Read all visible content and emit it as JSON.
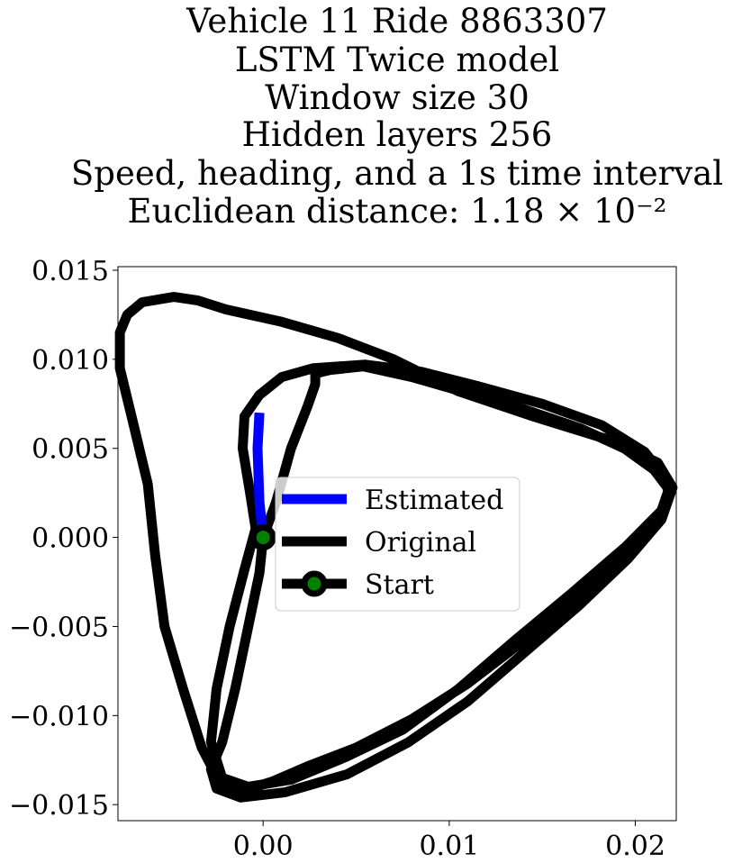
{
  "chart_data": {
    "type": "line",
    "title_lines": [
      "Vehicle 11 Ride 8863307",
      "LSTM Twice model",
      "Window size 30",
      "Hidden layers 256",
      "Speed, heading, and a 1s time interval",
      "Euclidean distance: 1.18 × 10⁻²"
    ],
    "xlabel": "",
    "ylabel": "",
    "xlim": [
      -0.0078,
      0.0222
    ],
    "ylim": [
      -0.0159,
      0.0152
    ],
    "xticks": [
      0.0,
      0.01,
      0.02
    ],
    "xtick_labels": [
      "0.00",
      "0.01",
      "0.02"
    ],
    "yticks": [
      -0.015,
      -0.01,
      -0.005,
      0.0,
      0.005,
      0.01,
      0.015
    ],
    "ytick_labels": [
      "−0.015",
      "−0.010",
      "−0.005",
      "0.000",
      "0.005",
      "0.010",
      "0.015"
    ],
    "grid": false,
    "legend_position": "center",
    "series": [
      {
        "name": "Estimated",
        "color": "#0000ff",
        "points": [
          [
            0.0,
            0.0
          ],
          [
            -0.0002,
            0.002
          ],
          [
            -0.0003,
            0.005
          ],
          [
            -0.0002,
            0.007
          ]
        ]
      },
      {
        "name": "Original",
        "color": "#000000",
        "points": [
          [
            0.0,
            0.0
          ],
          [
            0.0007,
            0.002
          ],
          [
            0.0015,
            0.005
          ],
          [
            0.0024,
            0.0074
          ],
          [
            0.0028,
            0.0086
          ],
          [
            0.0028,
            0.0092
          ],
          [
            0.0036,
            0.0094
          ],
          [
            0.0054,
            0.0096
          ],
          [
            0.008,
            0.009
          ],
          [
            0.011,
            0.0081
          ],
          [
            0.014,
            0.0072
          ],
          [
            0.0171,
            0.0061
          ],
          [
            0.0194,
            0.005
          ],
          [
            0.021,
            0.0038
          ],
          [
            0.0218,
            0.0027
          ],
          [
            0.0214,
            0.0015
          ],
          [
            0.0195,
            -0.0005
          ],
          [
            0.0165,
            -0.0032
          ],
          [
            0.0135,
            -0.0058
          ],
          [
            0.0105,
            -0.0085
          ],
          [
            0.0075,
            -0.0108
          ],
          [
            0.0045,
            -0.0123
          ],
          [
            0.0015,
            -0.0136
          ],
          [
            -0.0008,
            -0.014
          ],
          [
            -0.0022,
            -0.0135
          ],
          [
            -0.0028,
            -0.0115
          ],
          [
            -0.0025,
            -0.0085
          ],
          [
            -0.0018,
            -0.005
          ],
          [
            -0.001,
            -0.0018
          ],
          [
            -0.0004,
            0.0005
          ],
          [
            -0.0007,
            0.0025
          ],
          [
            -0.0011,
            0.005
          ],
          [
            -0.001,
            0.0068
          ],
          [
            -0.0002,
            0.008
          ],
          [
            0.001,
            0.009
          ],
          [
            0.0027,
            0.0095
          ],
          [
            0.0055,
            0.0097
          ],
          [
            0.0085,
            0.0093
          ],
          [
            0.0115,
            0.0085
          ],
          [
            0.015,
            0.0075
          ],
          [
            0.0182,
            0.0063
          ],
          [
            0.0205,
            0.0048
          ],
          [
            0.0215,
            0.0035
          ],
          [
            0.0218,
            0.0025
          ],
          [
            0.0213,
            0.0012
          ],
          [
            0.0195,
            -0.0008
          ],
          [
            0.0168,
            -0.0034
          ],
          [
            0.014,
            -0.0058
          ],
          [
            0.011,
            -0.0082
          ],
          [
            0.008,
            -0.0102
          ],
          [
            0.005,
            -0.0118
          ],
          [
            0.0025,
            -0.0128
          ],
          [
            0.0005,
            -0.0137
          ],
          [
            -0.001,
            -0.0142
          ],
          [
            -0.0024,
            -0.0136
          ],
          [
            -0.0033,
            -0.0118
          ],
          [
            -0.0043,
            -0.0085
          ],
          [
            -0.0053,
            -0.005
          ],
          [
            -0.0058,
            -0.001
          ],
          [
            -0.0062,
            0.003
          ],
          [
            -0.007,
            0.0065
          ],
          [
            -0.0077,
            0.0095
          ],
          [
            -0.0077,
            0.0115
          ],
          [
            -0.0073,
            0.0125
          ],
          [
            -0.0065,
            0.0132
          ],
          [
            -0.0048,
            0.0135
          ],
          [
            -0.0035,
            0.0133
          ],
          [
            -0.002,
            0.0128
          ],
          [
            0.001,
            0.0121
          ],
          [
            0.004,
            0.0112
          ],
          [
            0.007,
            0.01
          ],
          [
            0.0105,
            0.0082
          ],
          [
            0.0145,
            0.0068
          ],
          [
            0.0185,
            0.0055
          ],
          [
            0.0212,
            0.0042
          ],
          [
            0.022,
            0.0028
          ],
          [
            0.0214,
            0.001
          ],
          [
            0.0196,
            -0.0012
          ],
          [
            0.017,
            -0.0038
          ],
          [
            0.014,
            -0.0065
          ],
          [
            0.011,
            -0.0092
          ],
          [
            0.0078,
            -0.0115
          ],
          [
            0.0045,
            -0.0133
          ],
          [
            0.0012,
            -0.0143
          ],
          [
            -0.0012,
            -0.0146
          ],
          [
            -0.0025,
            -0.0141
          ],
          [
            -0.0028,
            -0.013
          ],
          [
            -0.0022,
            -0.0115
          ],
          [
            -0.0015,
            -0.0085
          ],
          [
            -0.0008,
            -0.005
          ],
          [
            -0.0002,
            -0.002
          ],
          [
            0.0,
            0.0
          ]
        ]
      }
    ],
    "start_marker": {
      "name": "Start",
      "x": 0.0,
      "y": 0.0,
      "edge_color": "#000000",
      "face_color": "#008000"
    }
  }
}
